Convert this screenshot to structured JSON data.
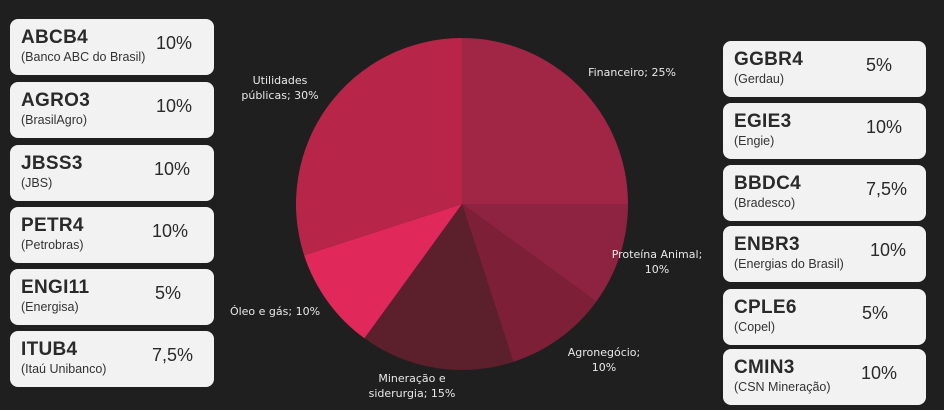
{
  "left_cards": [
    {
      "ticker": "ABCB4",
      "name": "(Banco ABC do Brasil)",
      "pct": "10%"
    },
    {
      "ticker": "AGRO3",
      "name": "(BrasilAgro)",
      "pct": "10%"
    },
    {
      "ticker": "JBSS3",
      "name": "(JBS)",
      "pct": "10%"
    },
    {
      "ticker": "PETR4",
      "name": "(Petrobras)",
      "pct": "10%"
    },
    {
      "ticker": "ENGI11",
      "name": "(Energisa)",
      "pct": "5%"
    },
    {
      "ticker": "ITUB4",
      "name": "(Itaú Unibanco)",
      "pct": "7,5%"
    }
  ],
  "right_cards": [
    {
      "ticker": "GGBR4",
      "name": "(Gerdau)",
      "pct": "5%"
    },
    {
      "ticker": "EGIE3",
      "name": "(Engie)",
      "pct": "10%"
    },
    {
      "ticker": "BBDC4",
      "name": "(Bradesco)",
      "pct": "7,5%"
    },
    {
      "ticker": "ENBR3",
      "name": "(Energias do Brasil)",
      "pct": "10%"
    },
    {
      "ticker": "CPLE6",
      "name": "(Copel)",
      "pct": "5%"
    },
    {
      "ticker": "CMIN3",
      "name": "(CSN Mineração)",
      "pct": "10%"
    }
  ],
  "chart_data": {
    "type": "pie",
    "slices": [
      {
        "label_lines": [
          "Financeiro; 25%"
        ],
        "value": 25,
        "color": "#a12545"
      },
      {
        "label_lines": [
          "Proteína Animal;",
          "10%"
        ],
        "value": 10,
        "color": "#8e2241"
      },
      {
        "label_lines": [
          "Agronegócio;",
          "10%"
        ],
        "value": 10,
        "color": "#7d2037"
      },
      {
        "label_lines": [
          "Mineração e",
          "siderurgia; 15%"
        ],
        "value": 15,
        "color": "#5c1f2c"
      },
      {
        "label_lines": [
          "Óleo e gás; 10%"
        ],
        "value": 10,
        "color": "#e0285a"
      },
      {
        "label_lines": [
          "Utilidades",
          "públicas; 30%"
        ],
        "value": 30,
        "color": "#b72649"
      }
    ]
  }
}
